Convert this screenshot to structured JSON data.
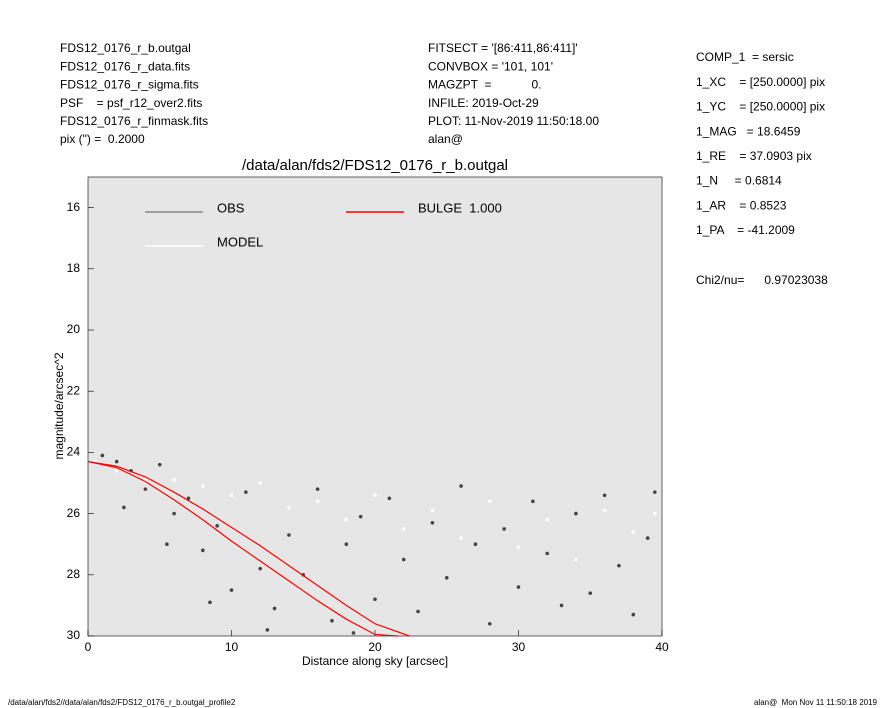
{
  "header": {
    "left": [
      "FDS12_0176_r_b.outgal",
      "FDS12_0176_r_data.fits",
      "FDS12_0176_r_sigma.fits",
      "PSF    = psf_r12_over2.fits",
      "FDS12_0176_r_finmask.fits",
      "pix (\") =  0.2000"
    ],
    "middle": [
      "FITSECT = '[86:411,86:411]'",
      "CONVBOX = '101, 101'",
      "MAGZPT  =            0.",
      "INFILE: 2019-Oct-29",
      "PLOT: 11-Nov-2019 11:50:18.00",
      "alan@"
    ],
    "right": [
      "COMP_1  = sersic",
      "1_XC    = [250.0000] pix",
      "1_YC    = [250.0000] pix",
      "1_MAG   = 18.6459",
      "1_RE    = 37.0903 pix",
      "1_N     = 0.6814",
      "1_AR    = 0.8523",
      "1_PA    = -41.2009"
    ],
    "chi2": "Chi2/nu=      0.97023038"
  },
  "footer": {
    "left": "/data/alan/fds2//data/alan/fds2/FDS12_0176_r_b.outgal_profile2",
    "right": "alan@  Mon Nov 11 11:50:18 2019"
  },
  "chart_data": {
    "type": "scatter",
    "title": "/data/alan/fds2/FDS12_0176_r_b.outgal",
    "x_label": "Distance along sky [arcsec]",
    "y_label": "magnitude/arcsec^2",
    "xlim": [
      0,
      40
    ],
    "xticks": [
      0,
      10,
      20,
      30,
      40
    ],
    "ylim": [
      30,
      15
    ],
    "yticks": [
      16,
      18,
      20,
      22,
      24,
      26,
      28,
      30
    ],
    "background": "#e6e6e6",
    "series": [
      {
        "name": "OBS",
        "color": "#444444",
        "legend_color": "#888888",
        "x": [
          1,
          2,
          2.5,
          3,
          4,
          5,
          5.5,
          6,
          7,
          8,
          8.5,
          9,
          10,
          11,
          12,
          12.5,
          13,
          14,
          15,
          16,
          17,
          18,
          18.5,
          19,
          20,
          21,
          22,
          23,
          24,
          25,
          26,
          27,
          28,
          29,
          30,
          31,
          32,
          33,
          34,
          35,
          36,
          37,
          38,
          39,
          39.5
        ],
        "values": [
          24.1,
          24.3,
          25.8,
          24.6,
          25.2,
          24.4,
          27.0,
          26.0,
          25.5,
          27.2,
          28.9,
          26.4,
          28.5,
          25.3,
          27.8,
          29.8,
          29.1,
          26.7,
          28.0,
          25.2,
          29.5,
          27.0,
          29.9,
          26.1,
          28.8,
          25.5,
          27.5,
          29.2,
          26.3,
          28.1,
          25.1,
          27.0,
          29.6,
          26.5,
          28.4,
          25.6,
          27.3,
          29.0,
          26.0,
          28.6,
          25.4,
          27.7,
          29.3,
          26.8,
          25.3
        ]
      },
      {
        "name": "MODEL",
        "color": "#ffffff",
        "legend_color": "#ffffff",
        "x": [
          0.5,
          2,
          4,
          6,
          8,
          10,
          12,
          14,
          16,
          18,
          20,
          22,
          24,
          26,
          28,
          30,
          32,
          34,
          36,
          38,
          39.5
        ],
        "values": [
          24.3,
          24.6,
          24.9,
          24.9,
          25.1,
          25.4,
          25.0,
          25.8,
          25.6,
          26.2,
          25.4,
          26.5,
          25.9,
          26.8,
          25.6,
          27.1,
          26.2,
          27.5,
          25.9,
          26.6,
          26.0
        ]
      }
    ],
    "model_lines": [
      {
        "name": "BULGE  1.000",
        "color": "#ff0000",
        "x": [
          0,
          2,
          4,
          6,
          8,
          10,
          12,
          14,
          16,
          18,
          20,
          22.4
        ],
        "values": [
          24.3,
          24.45,
          24.8,
          25.3,
          25.85,
          26.45,
          27.05,
          27.7,
          28.35,
          29.0,
          29.6,
          30
        ]
      },
      {
        "color": "#ff0000",
        "x": [
          0,
          2,
          4,
          6,
          8,
          10,
          12,
          14,
          16,
          18,
          20,
          21.6
        ],
        "values": [
          24.3,
          24.5,
          24.95,
          25.55,
          26.2,
          26.9,
          27.55,
          28.2,
          28.85,
          29.45,
          29.95,
          30
        ]
      }
    ]
  }
}
